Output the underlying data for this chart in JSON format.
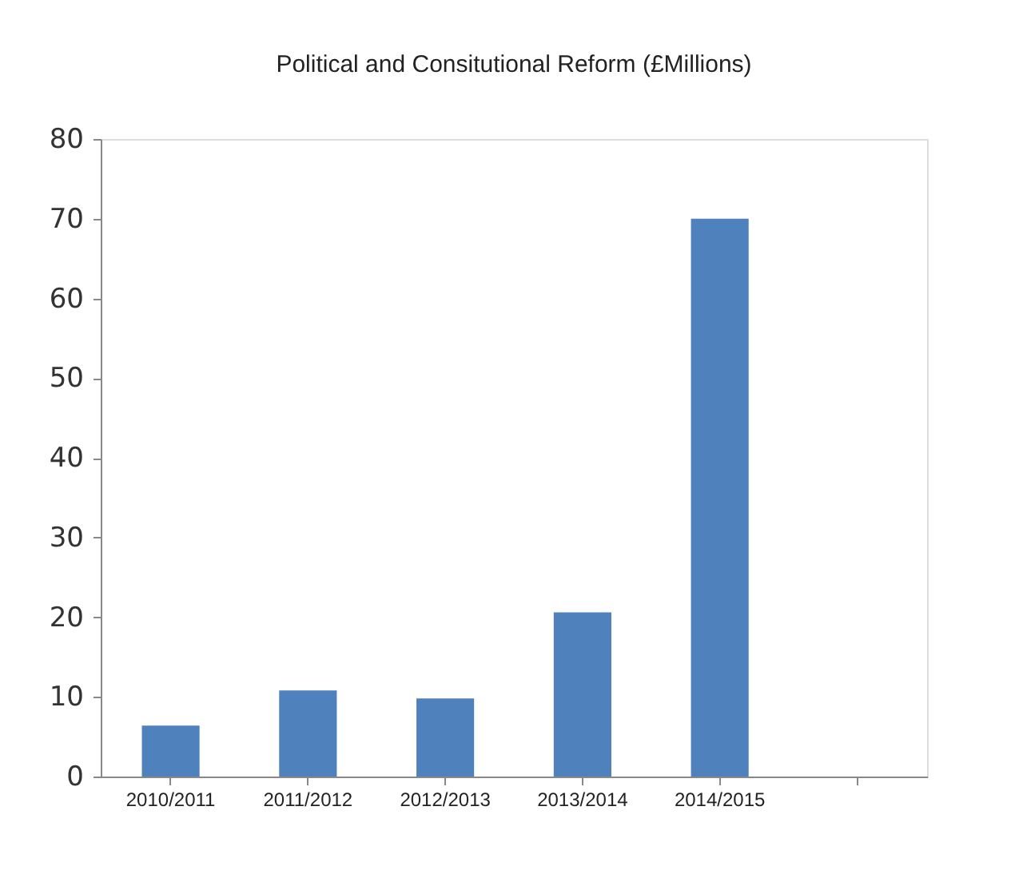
{
  "chart_data": {
    "type": "bar",
    "title": "Political and Consitutional Reform (£Millions)",
    "categories": [
      "2010/2011",
      "2011/2012",
      "2012/2013",
      "2013/2014",
      "2014/2015",
      null
    ],
    "values": [
      6.4,
      10.8,
      9.8,
      20.6,
      70,
      null
    ],
    "color": "#4f81bd",
    "ylim": [
      0,
      80
    ],
    "yticks": [
      0,
      10,
      20,
      30,
      40,
      50,
      60,
      70,
      80
    ],
    "grid": false
  }
}
